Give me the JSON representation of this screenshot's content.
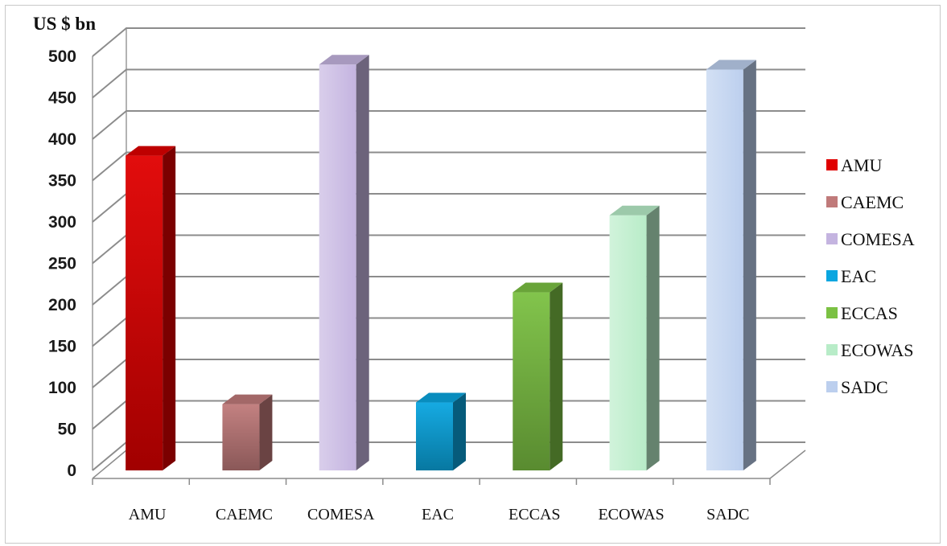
{
  "chart_data": {
    "type": "bar",
    "style": "3d-column",
    "ylabel": "US $ bn",
    "xlabel": "",
    "title": "",
    "ylim": [
      0,
      500
    ],
    "yticks": [
      0,
      50,
      100,
      150,
      200,
      250,
      300,
      350,
      400,
      450,
      500
    ],
    "grid": true,
    "legend_position": "right",
    "categories": [
      "AMU",
      "CAEMC",
      "COMESA",
      "EAC",
      "ECCAS",
      "ECOWAS",
      "SADC"
    ],
    "values": [
      380,
      80,
      490,
      82,
      215,
      308,
      484
    ],
    "colors": {
      "AMU": "#e00000",
      "CAEMC": "#c07a7a",
      "COMESA": "#c4b4e0",
      "EAC": "#0aa6e0",
      "ECCAS": "#7bc143",
      "ECOWAS": "#b8ecc8",
      "SADC": "#bccfee"
    }
  }
}
